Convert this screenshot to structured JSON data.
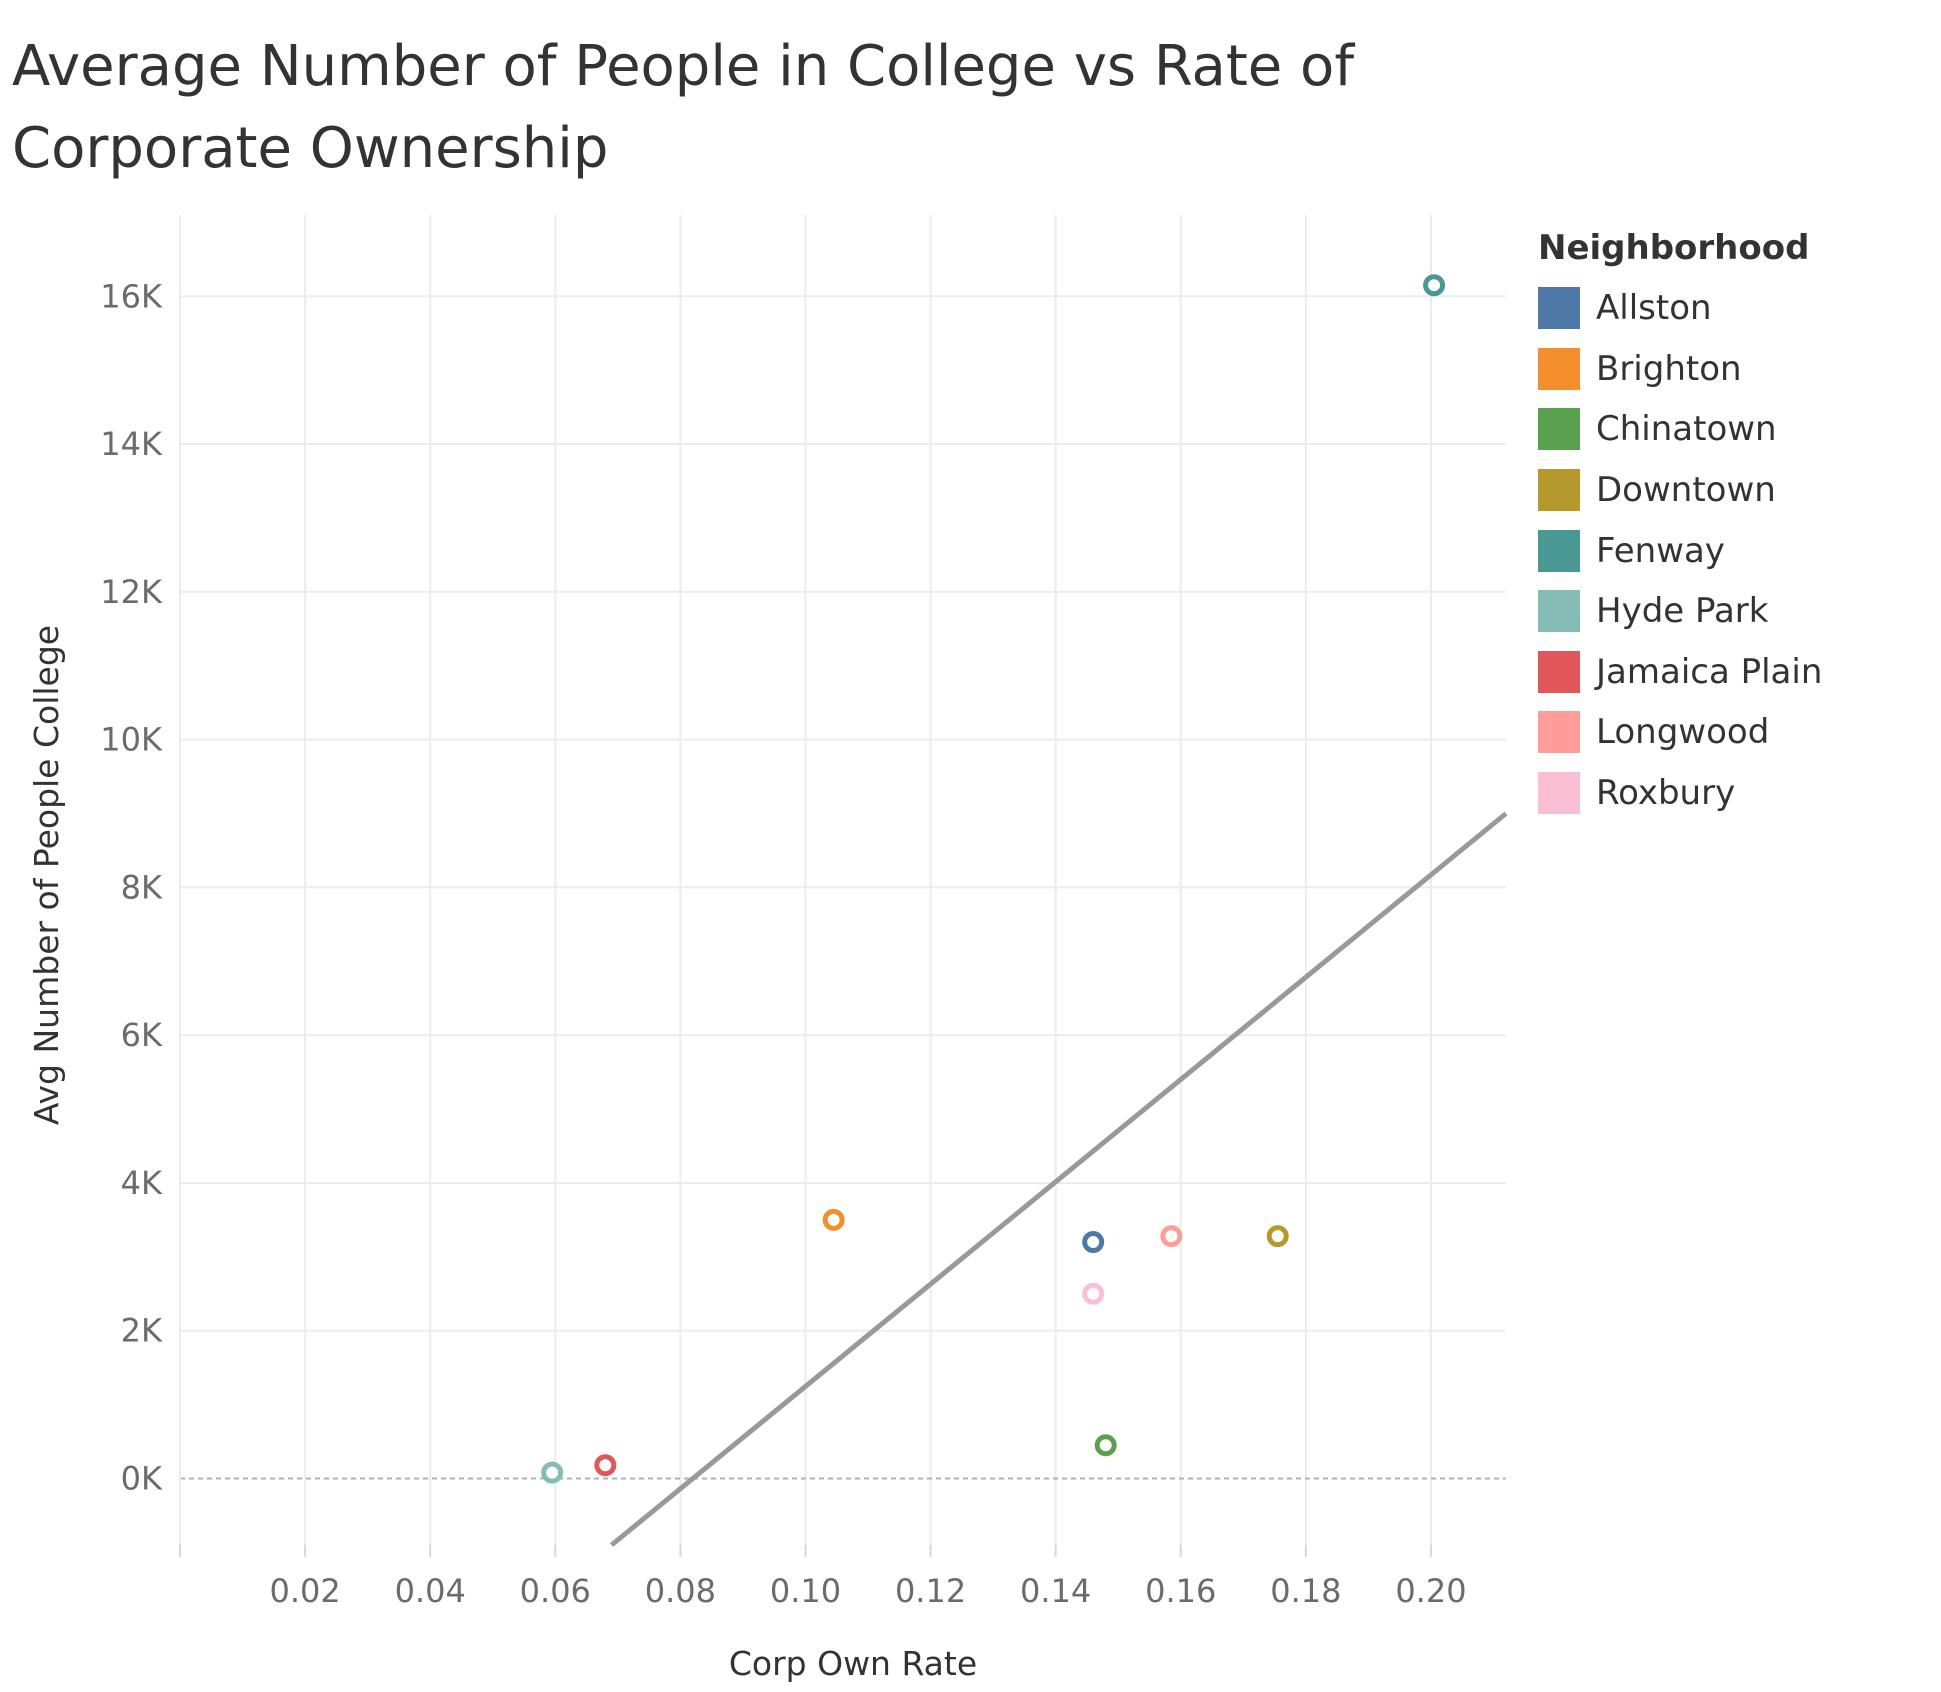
{
  "title": "Average Number of People in College vs Rate of Corporate Ownership",
  "chart_data": {
    "type": "scatter",
    "title": "Average Number of People in College vs Rate of Corporate Ownership",
    "xlabel": "Corp Own Rate",
    "ylabel": "Avg Number of People College",
    "xlim": [
      0.0,
      0.212
    ],
    "ylim": [
      -900,
      17100
    ],
    "x_ticks": [
      0.02,
      0.04,
      0.06,
      0.08,
      0.1,
      0.12,
      0.14,
      0.16,
      0.18,
      0.2
    ],
    "x_tick_labels": [
      "0.02",
      "0.04",
      "0.06",
      "0.08",
      "0.10",
      "0.12",
      "0.14",
      "0.16",
      "0.18",
      "0.20"
    ],
    "y_ticks": [
      0,
      2000,
      4000,
      6000,
      8000,
      10000,
      12000,
      14000,
      16000
    ],
    "y_tick_labels": [
      "0K",
      "2K",
      "4K",
      "6K",
      "8K",
      "10K",
      "12K",
      "14K",
      "16K"
    ],
    "grid": true,
    "zero_line": "dashed",
    "legend": {
      "title": "Neighborhood",
      "placement": "right"
    },
    "series": [
      {
        "name": "Allston",
        "color": "#4e79a7",
        "x": 0.146,
        "y": 3200
      },
      {
        "name": "Brighton",
        "color": "#f28e2b",
        "x": 0.1045,
        "y": 3500
      },
      {
        "name": "Chinatown",
        "color": "#59a14f",
        "x": 0.148,
        "y": 450
      },
      {
        "name": "Downtown",
        "color": "#b6992d",
        "x": 0.1755,
        "y": 3280
      },
      {
        "name": "Fenway",
        "color": "#499894",
        "x": 0.2005,
        "y": 16150
      },
      {
        "name": "Hyde Park",
        "color": "#86bcb6",
        "x": 0.0595,
        "y": 80
      },
      {
        "name": "Jamaica Plain",
        "color": "#e15759",
        "x": 0.068,
        "y": 180
      },
      {
        "name": "Longwood",
        "color": "#ff9d9a",
        "x": 0.1585,
        "y": 3280
      },
      {
        "name": "Roxbury",
        "color": "#fabfd2",
        "x": 0.146,
        "y": 2500
      }
    ],
    "trend_line": {
      "color": "#999999",
      "points": [
        [
          0.069,
          -900
        ],
        [
          0.212,
          9000
        ]
      ]
    }
  }
}
